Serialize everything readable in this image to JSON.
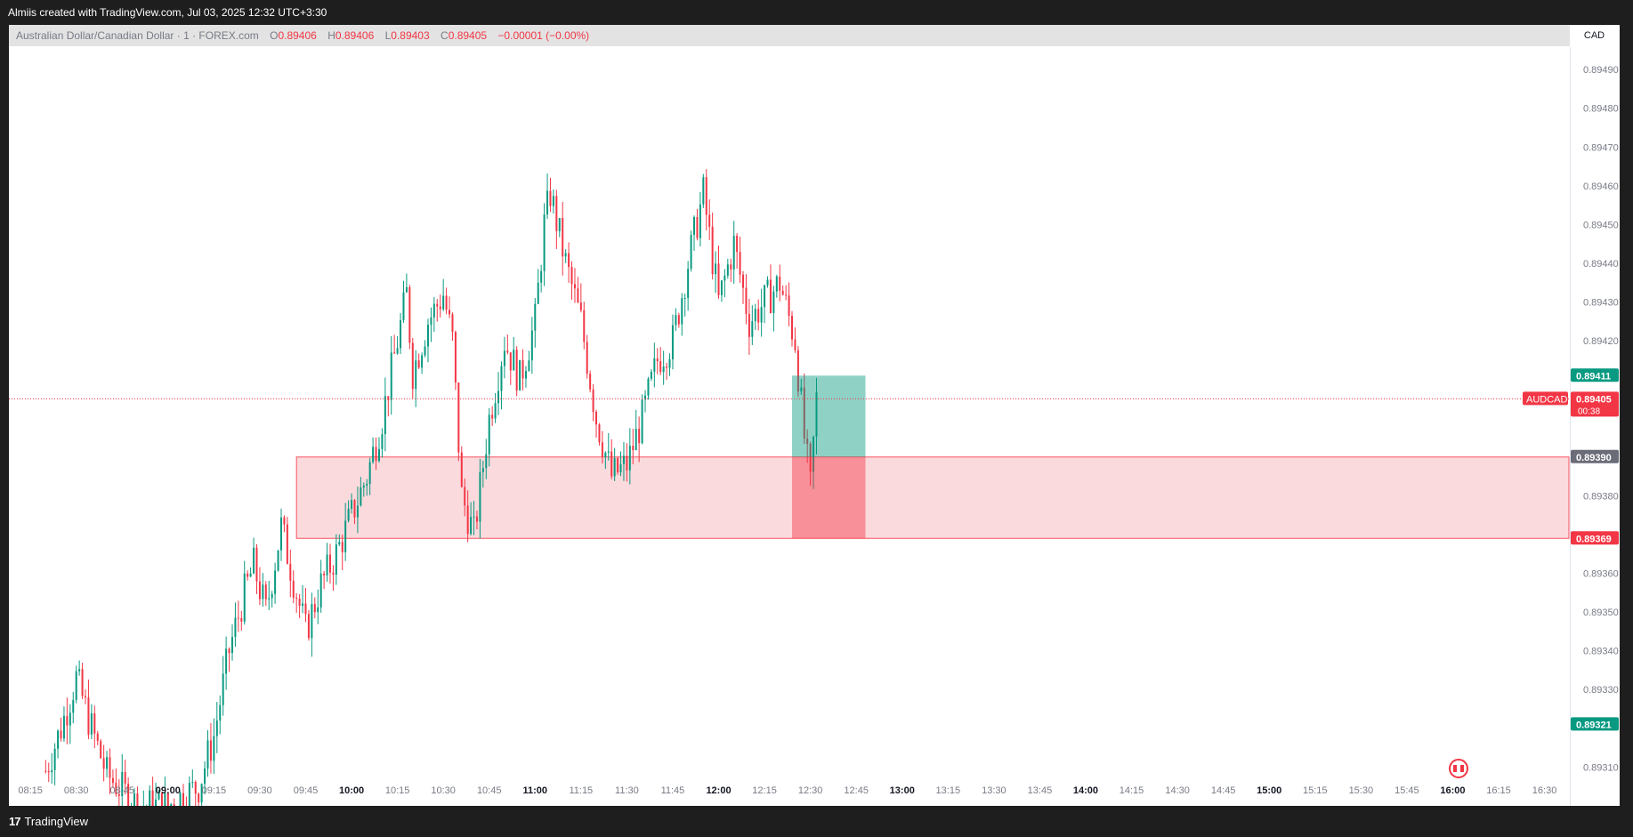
{
  "header": {
    "credit": "Almiis created with TradingView.com, Jul 03, 2025 12:32 UTC+3:30"
  },
  "legend": {
    "title": "Australian Dollar/Canadian Dollar · 1 · FOREX.com",
    "o_label": "O",
    "o_value": "0.89406",
    "h_label": "H",
    "h_value": "0.89406",
    "l_label": "L",
    "l_value": "0.89403",
    "c_label": "C",
    "c_value": "0.89405",
    "change": "−0.00001 (−0.00%)"
  },
  "axis": {
    "currency": "CAD"
  },
  "footer": {
    "brand": "TradingView"
  },
  "colors": {
    "up": "#089981",
    "down": "#f23645",
    "zone_fill": "#fbdadd",
    "zone_border": "#f7525f",
    "grid_text": "#787b86"
  },
  "chart_data": {
    "type": "candlestick",
    "symbol": "AUDCAD",
    "timeframe": "1",
    "x_ticks": [
      "08:15",
      "08:30",
      "08:45",
      "09:00",
      "09:15",
      "09:30",
      "09:45",
      "10:00",
      "10:15",
      "10:30",
      "10:45",
      "11:00",
      "11:15",
      "11:30",
      "11:45",
      "12:00",
      "12:15",
      "12:30",
      "12:45",
      "13:00",
      "13:15",
      "13:30",
      "13:45",
      "14:00",
      "14:15",
      "14:30",
      "14:45",
      "15:00",
      "15:15",
      "15:30",
      "15:45",
      "16:00",
      "16:15",
      "16:30"
    ],
    "bold_x_ticks": [
      "09:00",
      "10:00",
      "11:00",
      "12:00",
      "13:00",
      "14:00",
      "15:00",
      "16:00"
    ],
    "y_ticks": [
      "0.89490",
      "0.89480",
      "0.89470",
      "0.89460",
      "0.89450",
      "0.89440",
      "0.89430",
      "0.89420",
      "0.89380",
      "0.89360",
      "0.89350",
      "0.89340",
      "0.89330",
      "0.89310"
    ],
    "ylim": [
      0.89308,
      0.89496
    ],
    "xlim_minutes": [
      8.133,
      16.633
    ],
    "price_labels": [
      {
        "text": "0.89411",
        "value": 0.89411,
        "color": "#089981"
      },
      {
        "text": "0.89405",
        "value": 0.89405,
        "color": "#f23645",
        "countdown": "00:38",
        "symbol_tag": "AUDCAD"
      },
      {
        "text": "0.89390",
        "value": 0.8939,
        "color": "#6a6d78"
      },
      {
        "text": "0.89369",
        "value": 0.89369,
        "color": "#f23645"
      },
      {
        "text": "0.89321",
        "value": 0.89321,
        "color": "#089981"
      }
    ],
    "current_price": 0.89405,
    "zone": {
      "start": "09:42",
      "top": 0.8939,
      "bottom": 0.89369
    },
    "position": {
      "start": "12:24",
      "end": "12:48",
      "entry": 0.8939,
      "target": 0.89411,
      "stop": 0.89369
    },
    "anchors": [
      [
        "08:20",
        0.89309
      ],
      [
        "08:25",
        0.8932
      ],
      [
        "08:30",
        0.89333
      ],
      [
        "08:35",
        0.8932
      ],
      [
        "08:40",
        0.89308
      ],
      [
        "08:50",
        0.893
      ],
      [
        "09:00",
        0.893
      ],
      [
        "09:10",
        0.89305
      ],
      [
        "09:15",
        0.89318
      ],
      [
        "09:20",
        0.8934
      ],
      [
        "09:25",
        0.89355
      ],
      [
        "09:28",
        0.89362
      ],
      [
        "09:32",
        0.8935
      ],
      [
        "09:37",
        0.89372
      ],
      [
        "09:42",
        0.89355
      ],
      [
        "09:45",
        0.89345
      ],
      [
        "09:50",
        0.89357
      ],
      [
        "09:55",
        0.89365
      ],
      [
        "10:00",
        0.89375
      ],
      [
        "10:05",
        0.89385
      ],
      [
        "10:10",
        0.894
      ],
      [
        "10:15",
        0.8942
      ],
      [
        "10:18",
        0.89432
      ],
      [
        "10:20",
        0.89412
      ],
      [
        "10:25",
        0.89425
      ],
      [
        "10:30",
        0.89432
      ],
      [
        "10:33",
        0.8942
      ],
      [
        "10:36",
        0.8938
      ],
      [
        "10:40",
        0.8937
      ],
      [
        "10:45",
        0.894
      ],
      [
        "10:50",
        0.8942
      ],
      [
        "10:55",
        0.8941
      ],
      [
        "11:00",
        0.89425
      ],
      [
        "11:03",
        0.8945
      ],
      [
        "11:05",
        0.89458
      ],
      [
        "11:10",
        0.8944
      ],
      [
        "11:15",
        0.89425
      ],
      [
        "11:20",
        0.894
      ],
      [
        "11:25",
        0.89385
      ],
      [
        "11:30",
        0.89388
      ],
      [
        "11:35",
        0.894
      ],
      [
        "11:40",
        0.89415
      ],
      [
        "11:45",
        0.8942
      ],
      [
        "11:50",
        0.8944
      ],
      [
        "11:55",
        0.89458
      ],
      [
        "12:00",
        0.8943
      ],
      [
        "12:05",
        0.89445
      ],
      [
        "12:10",
        0.89425
      ],
      [
        "12:15",
        0.8943
      ],
      [
        "12:20",
        0.89435
      ],
      [
        "12:25",
        0.8942
      ],
      [
        "12:28",
        0.89395
      ],
      [
        "12:30",
        0.89382
      ],
      [
        "12:32",
        0.89405
      ]
    ]
  }
}
